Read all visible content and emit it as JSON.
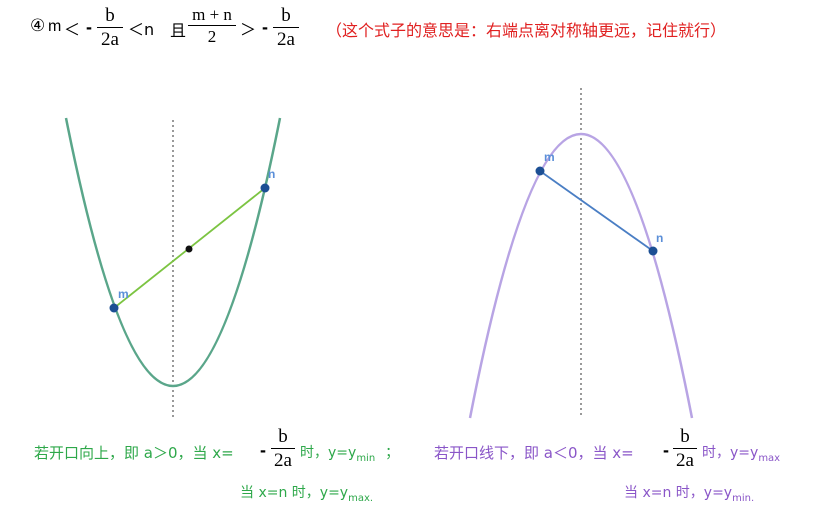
{
  "header": {
    "circled_num": "④",
    "m": "m",
    "lt1": "＜",
    "neg1": "-",
    "b1": "b",
    "two_a1": "2a",
    "lt2": "＜n",
    "qie": "且",
    "mn_num": "m + n",
    "two": "2",
    "gt": "＞",
    "neg2": "-",
    "b2": "b",
    "two_a2": "2a",
    "note": "（这个式子的意思是：右端点离对称轴更远，记住就行）"
  },
  "left_graph": {
    "label_m": "m",
    "label_n": "n",
    "caption_line1_a": "若开口向上，即 a＞0，当 x=",
    "neg": "-",
    "b": "b",
    "two_a": "2a",
    "caption_line1_b": "时，y=y",
    "sub1": "min",
    "semicolon": "；",
    "caption_line2": "当 x=n 时，y=y",
    "sub2": "max."
  },
  "right_graph": {
    "label_m": "m",
    "label_n": "n",
    "caption_line1_a": "若开口线下，即 a＜0，当 x=",
    "neg": "-",
    "b": "b",
    "two_a": "2a",
    "caption_line1_b": "时，y=y",
    "sub1": "max",
    "caption_line2": "当 x=n 时，y=y",
    "sub2": "min."
  },
  "colors": {
    "left_curve": "#5aa68a",
    "left_segment": "#7cc442",
    "right_curve": "#b8a4e4",
    "right_segment": "#4a7ec4",
    "point": "#1c4f94",
    "point_label": "#5b8fd8",
    "axis": "#999999",
    "green_text": "#2ea84a",
    "purple_text": "#8a56c8",
    "red_text": "#e02020"
  }
}
